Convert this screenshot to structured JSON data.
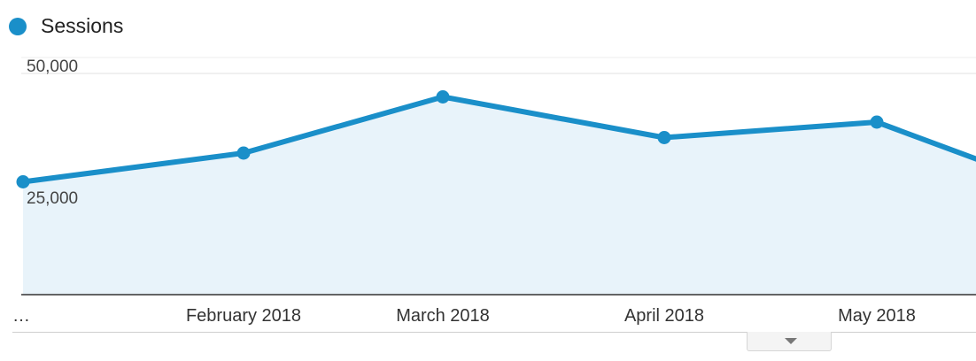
{
  "legend": {
    "label": "Sessions",
    "color": "#1a8fc9"
  },
  "chart_data": {
    "type": "area",
    "x": [
      "…",
      "February 2018",
      "March 2018",
      "April 2018",
      "May 2018",
      ""
    ],
    "series": [
      {
        "name": "Sessions",
        "values": [
          25500,
          32000,
          44700,
          35500,
          39000,
          30400
        ]
      }
    ],
    "ylim": [
      0,
      50000
    ],
    "yticks": [
      "50,000",
      "25,000"
    ],
    "ytick_values": [
      50000,
      25000
    ],
    "x_tick_labels": [
      "…",
      "February 2018",
      "March 2018",
      "April 2018",
      "May 2018"
    ],
    "grid": true,
    "line_color": "#1a8fc9",
    "fill_color": "#e8f3fa"
  },
  "icons": {
    "scroll_handle": "chevron-down-icon"
  }
}
